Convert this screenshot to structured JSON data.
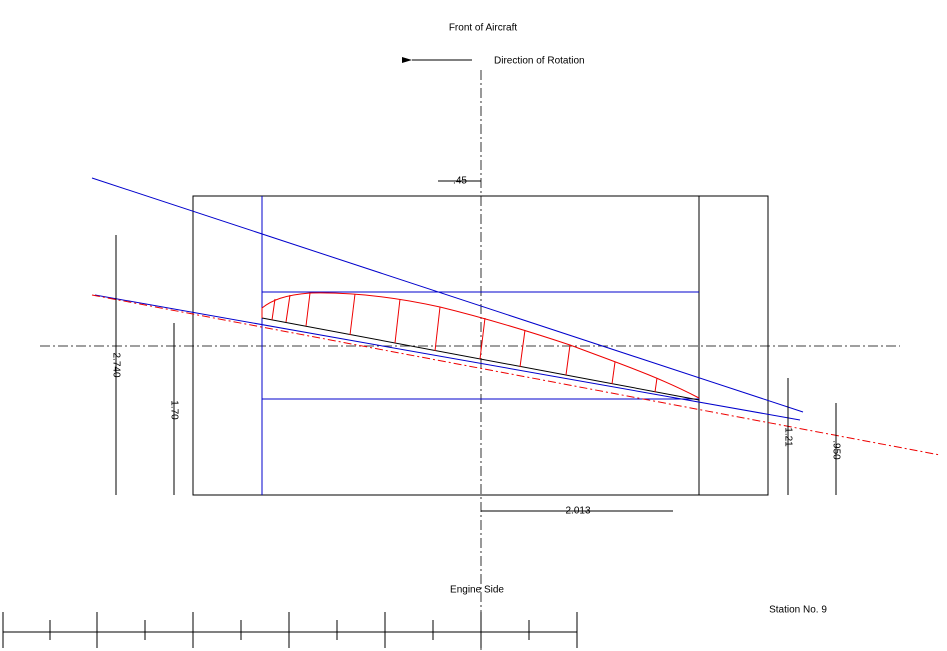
{
  "header": {
    "title": "Front of Aircraft"
  },
  "labels": {
    "direction": "Direction of Rotation",
    "engine_side": "Engine Side",
    "station": "Station No. 9"
  },
  "dimensions": [
    ".45",
    "2.740",
    "1.70",
    "1.21",
    ".950",
    "2.013"
  ]
}
